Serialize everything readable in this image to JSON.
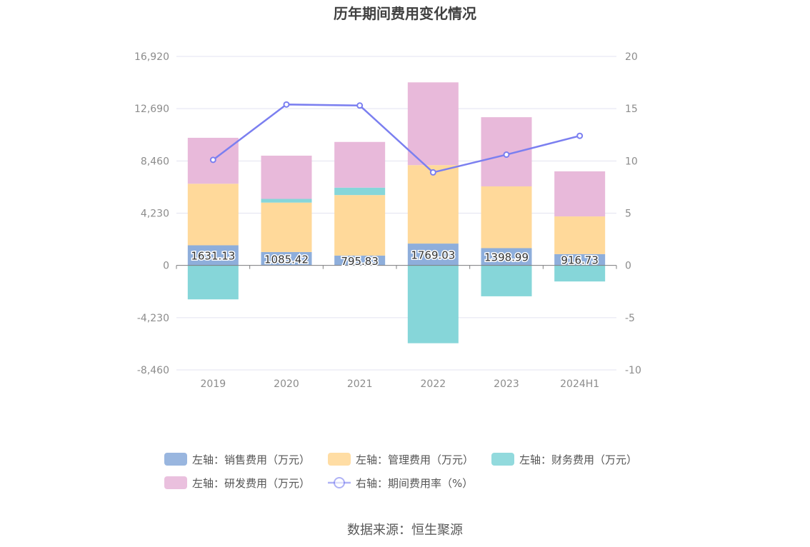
{
  "chart_data": {
    "type": "bar",
    "title": "历年期间费用变化情况",
    "categories": [
      "2019",
      "2020",
      "2021",
      "2022",
      "2023",
      "2024H1"
    ],
    "left_axis": {
      "min": -8460,
      "max": 16920,
      "ticks": [
        "16,920",
        "12,690",
        "8,460",
        "4,230",
        "0",
        "-4,230",
        "-8,460"
      ]
    },
    "right_axis": {
      "min": -10,
      "max": 20,
      "ticks": [
        "20",
        "15",
        "10",
        "5",
        "0",
        "-5",
        "-10"
      ]
    },
    "series": [
      {
        "name": "左轴：销售费用（万元）",
        "type": "bar",
        "axis": "left",
        "color": "#8eaedb",
        "values": [
          1631.13,
          1085.42,
          795.83,
          1769.03,
          1398.99,
          916.73
        ],
        "labels": [
          "1631.13",
          "1085.42",
          "795.83",
          "1769.03",
          "1398.99",
          "916.73"
        ]
      },
      {
        "name": "左轴：管理费用（万元）",
        "type": "bar",
        "axis": "left",
        "color": "#ffd99a",
        "values": [
          4980,
          4000,
          4900,
          6350,
          5000,
          3050
        ]
      },
      {
        "name": "左轴：财务费用（万元）",
        "type": "bar",
        "axis": "left",
        "color": "#86d6d9",
        "values": [
          -2750,
          300,
          600,
          -6300,
          -2500,
          -1300
        ]
      },
      {
        "name": "左轴：研发费用（万元）",
        "type": "bar",
        "axis": "left",
        "color": "#e8b9da",
        "values": [
          3720,
          3500,
          3700,
          6700,
          5600,
          3650
        ]
      },
      {
        "name": "右轴：期间费用率（%）",
        "type": "line",
        "axis": "right",
        "color": "#7b7ff0",
        "values": [
          10.1,
          15.4,
          15.3,
          8.9,
          10.6,
          12.4
        ]
      }
    ],
    "legend_position": "bottom",
    "grid": true
  },
  "source_text": "数据来源：恒生聚源"
}
